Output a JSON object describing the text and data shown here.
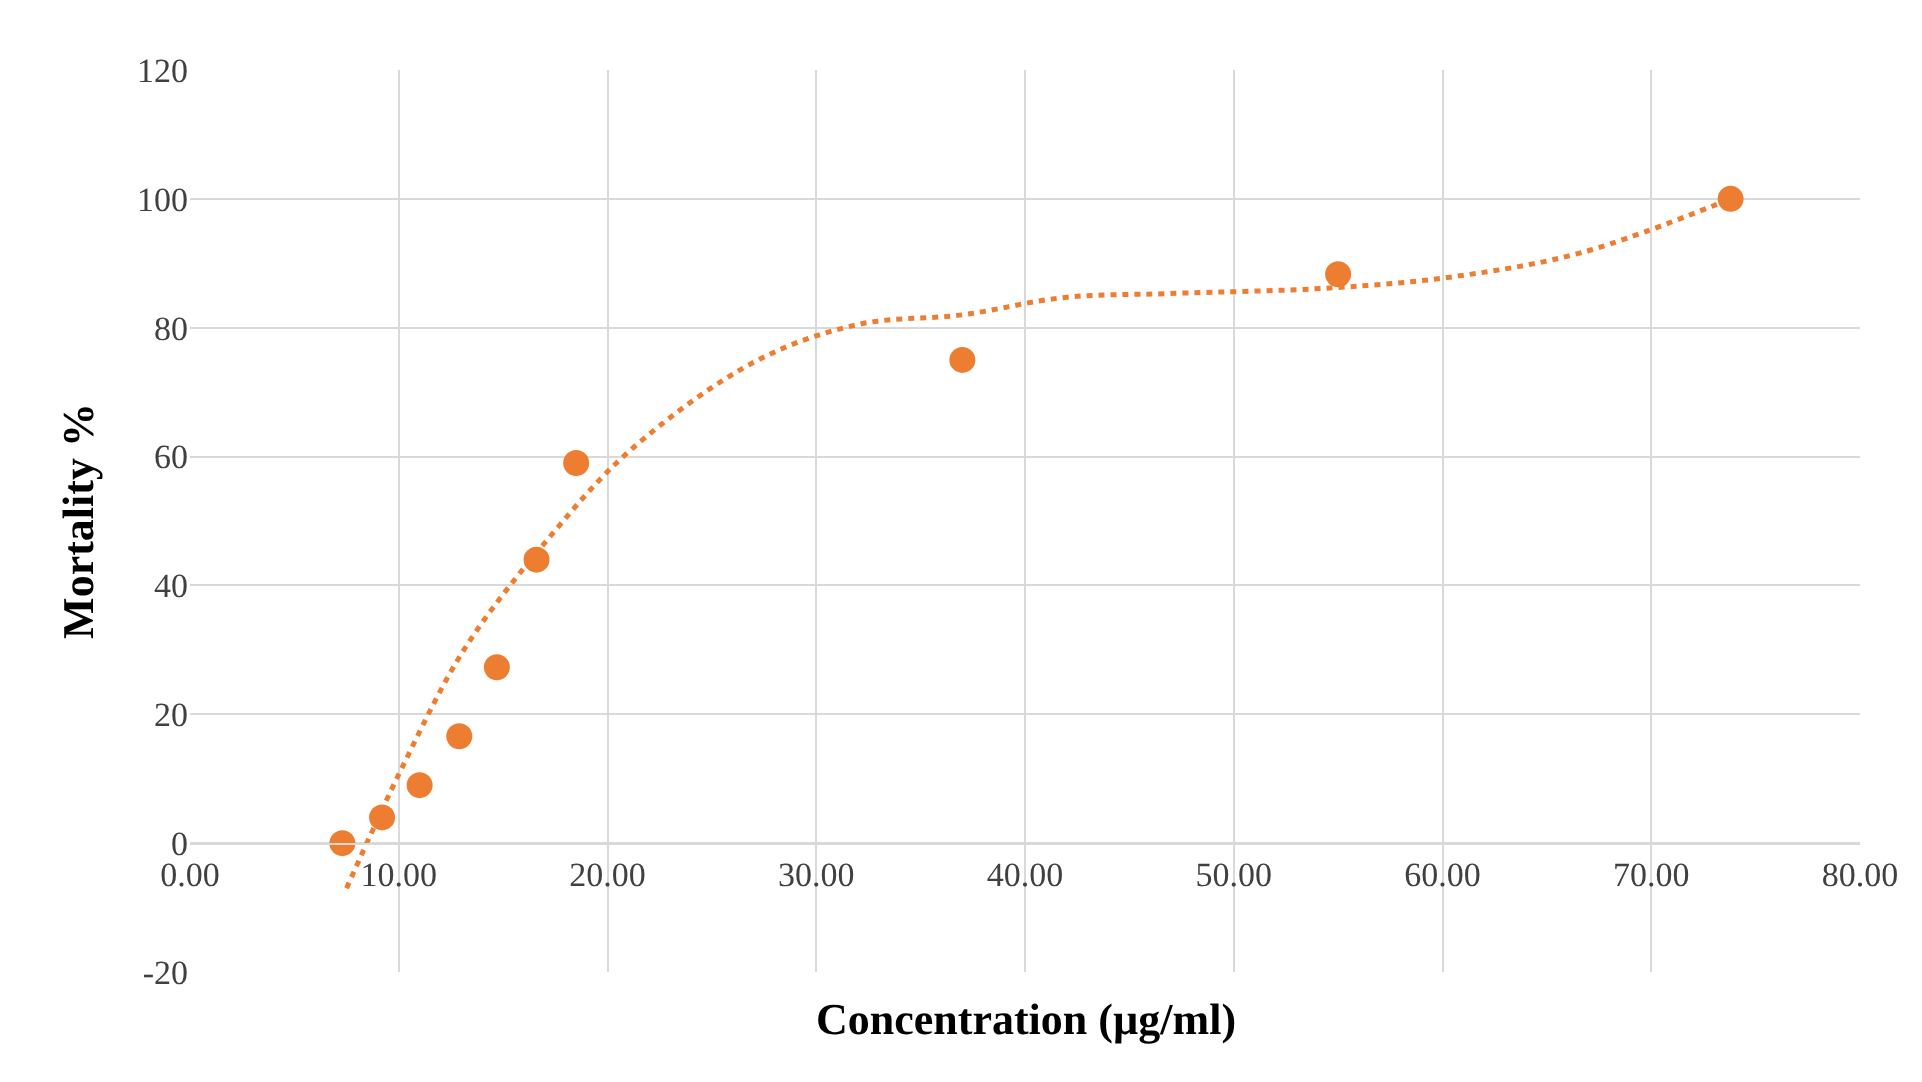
{
  "chart_data": {
    "type": "scatter",
    "xlabel": "Concentration (µg/ml)",
    "ylabel": "Mortality %",
    "xlim": [
      0,
      80
    ],
    "ylim": [
      -20,
      120
    ],
    "xticks": [
      {
        "value": 0,
        "label": "0.00"
      },
      {
        "value": 10,
        "label": "10.00"
      },
      {
        "value": 20,
        "label": "20.00"
      },
      {
        "value": 30,
        "label": "30.00"
      },
      {
        "value": 40,
        "label": "40.00"
      },
      {
        "value": 50,
        "label": "50.00"
      },
      {
        "value": 60,
        "label": "60.00"
      },
      {
        "value": 70,
        "label": "70.00"
      },
      {
        "value": 80,
        "label": "80.00"
      }
    ],
    "yticks": [
      -20,
      0,
      20,
      40,
      60,
      80,
      100,
      120
    ],
    "grid": true,
    "series": [
      {
        "marker": "circle",
        "color": "#ed7d31",
        "x": [
          7.3,
          9.2,
          11.0,
          12.9,
          14.7,
          16.6,
          18.5,
          37.0,
          55.0,
          73.8
        ],
        "values": [
          0,
          4,
          9,
          16.6,
          27.3,
          44,
          59,
          75,
          88.3,
          100
        ]
      },
      {
        "type": "line",
        "line_style": "dotted",
        "color": "#ed7d31",
        "x": [
          7.5,
          10.2,
          13.2,
          17.1,
          21.1,
          27.1,
          32,
          37,
          41.9,
          46.9,
          54.8,
          60.7,
          66.7,
          73.8
        ],
        "values": [
          -7,
          12,
          30.4,
          47,
          61,
          74.8,
          80.5,
          82,
          84.7,
          85.3,
          86.2,
          88,
          91.7,
          100
        ]
      }
    ]
  }
}
